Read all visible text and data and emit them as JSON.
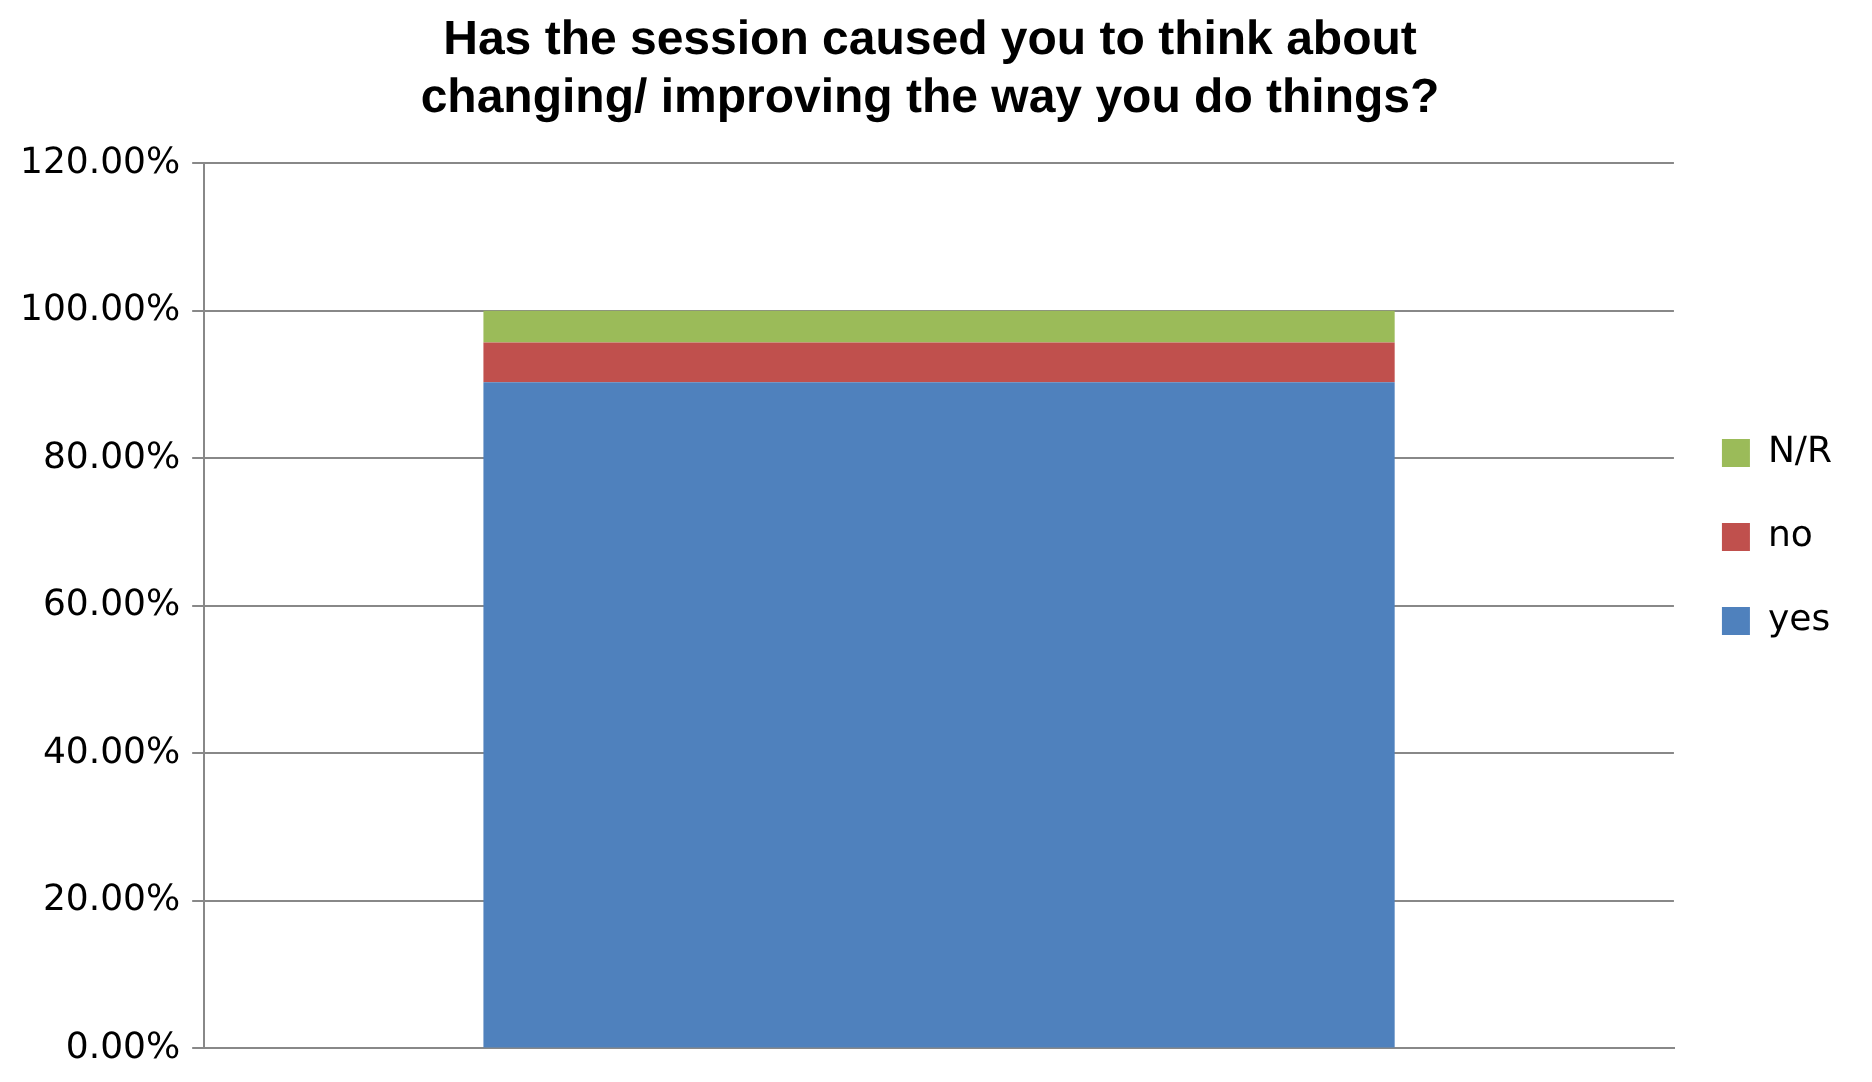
{
  "chart_data": {
    "type": "bar",
    "title": "Has the session caused you to think about changing/ improving the way you do things?",
    "categories": [
      null
    ],
    "stacked": true,
    "series": [
      {
        "name": "yes",
        "color": "#4f81bd",
        "values": [
          90.3
        ]
      },
      {
        "name": "no",
        "color": "#c0504d",
        "values": [
          5.4
        ]
      },
      {
        "name": "N/R",
        "color": "#9bbb59",
        "values": [
          4.3
        ]
      }
    ],
    "ylim": [
      0,
      120
    ],
    "yticks": [
      {
        "value": 0,
        "label": "0.00%"
      },
      {
        "value": 20,
        "label": "20.00%"
      },
      {
        "value": 40,
        "label": "40.00%"
      },
      {
        "value": 60,
        "label": "60.00%"
      },
      {
        "value": 80,
        "label": "80.00%"
      },
      {
        "value": 100,
        "label": "100.00%"
      },
      {
        "value": 120,
        "label": "120.00%"
      }
    ],
    "grid": "y",
    "legend": "right"
  }
}
